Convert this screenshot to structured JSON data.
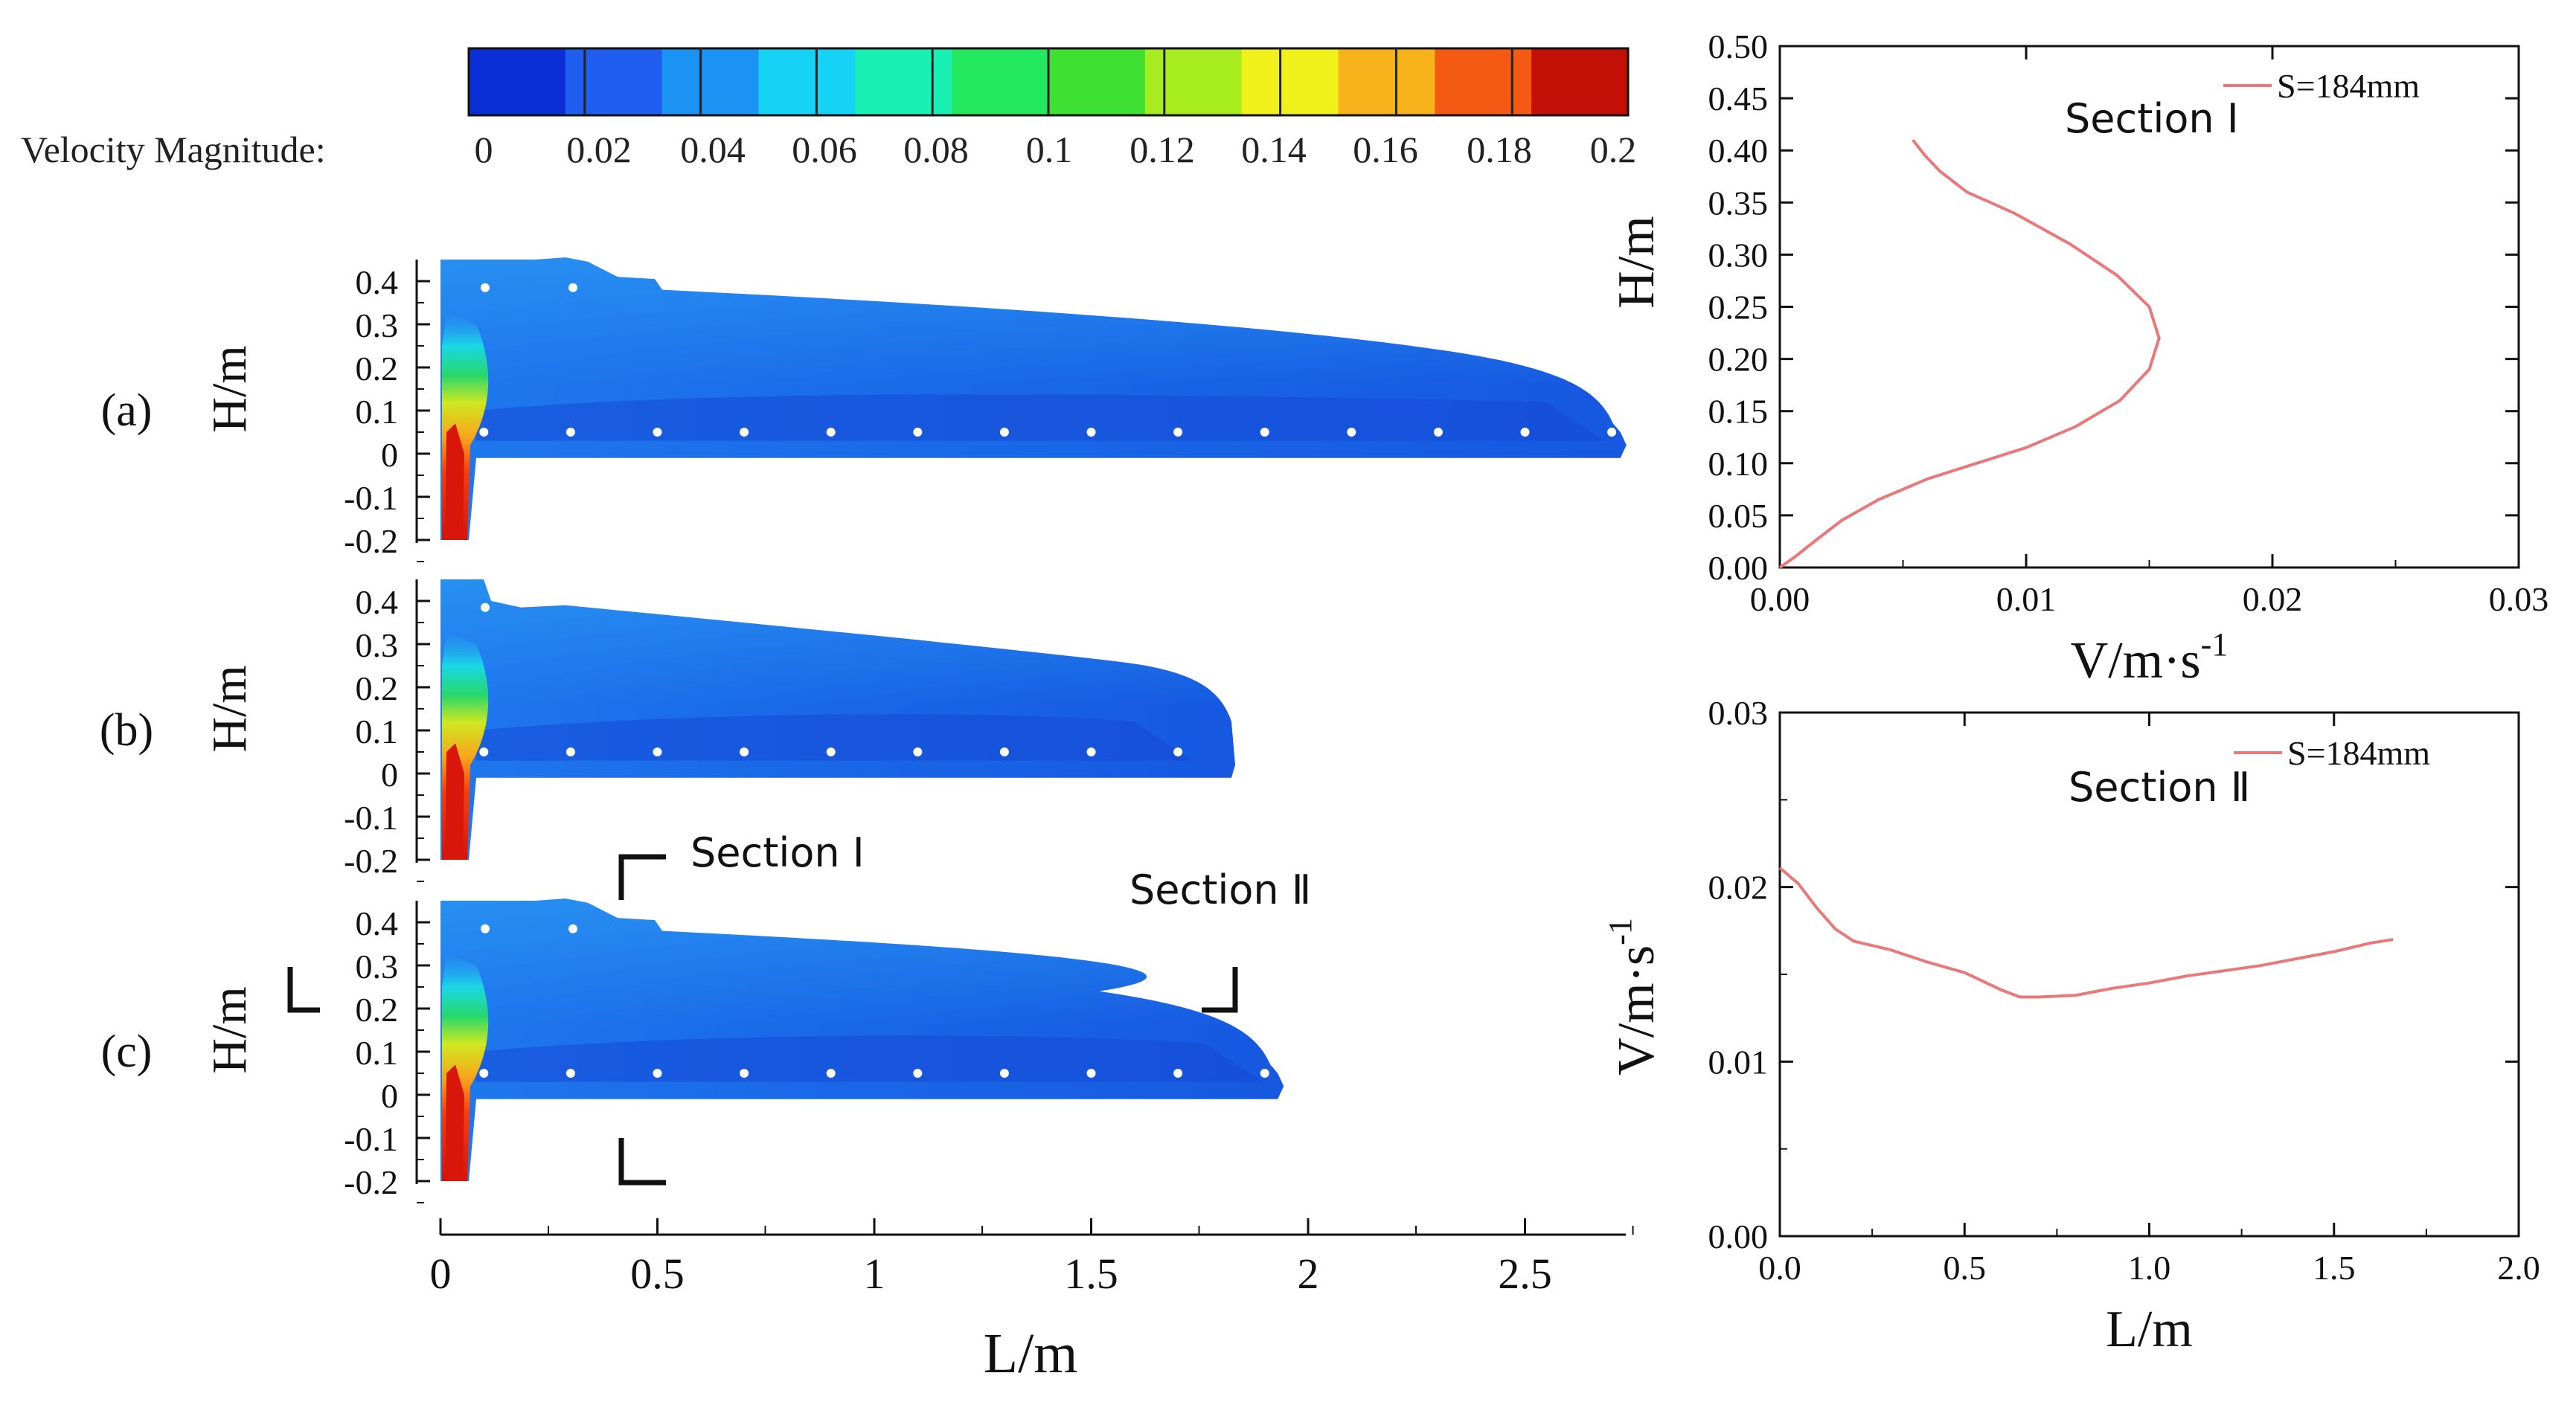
{
  "colorbar": {
    "label": "Velocity Magnitude:",
    "ticks": [
      "0",
      "0.02",
      "0.04",
      "0.06",
      "0.08",
      "0.1",
      "0.12",
      "0.14",
      "0.16",
      "0.18",
      "0.2"
    ],
    "colors": [
      "#0a2fd6",
      "#1f5ef0",
      "#1a93f5",
      "#16d3f5",
      "#19f0b4",
      "#22e860",
      "#3ee032",
      "#a6ec1f",
      "#f0f01a",
      "#f6b41a",
      "#f45a14",
      "#c21006"
    ],
    "range": [
      0,
      0.2
    ]
  },
  "contour_panels": {
    "ylabel": "H/m",
    "xlabel": "L/m",
    "y_ticks": [
      "0.4",
      "0.3",
      "0.2",
      "0.1",
      "0",
      "-0.1",
      "-0.2"
    ],
    "x_ticks": [
      "0",
      "0.5",
      "1",
      "1.5",
      "2",
      "2.5"
    ],
    "panels": [
      {
        "label": "(a)",
        "length_m": 2.72
      },
      {
        "label": "(b)",
        "length_m": 1.77
      },
      {
        "label": "(c)",
        "length_m": 1.93
      }
    ],
    "section1_label": "Section Ⅰ",
    "section2_label": "Section Ⅱ"
  },
  "chart_data": [
    {
      "type": "line",
      "title": "Section Ⅰ",
      "xlabel": "V/m·s",
      "xlabel_sup": "-1",
      "ylabel": "H/m",
      "xlim": [
        0,
        0.03
      ],
      "ylim": [
        0,
        0.5
      ],
      "x_ticks": [
        "0.00",
        "0.01",
        "0.02",
        "0.03"
      ],
      "y_ticks": [
        "0.00",
        "0.05",
        "0.10",
        "0.15",
        "0.20",
        "0.25",
        "0.30",
        "0.35",
        "0.40",
        "0.45",
        "0.50"
      ],
      "series": [
        {
          "name": "S=184mm",
          "color": "#e8787a",
          "points": [
            [
              0.0,
              0.0
            ],
            [
              0.0006,
              0.01
            ],
            [
              0.0014,
              0.025
            ],
            [
              0.0025,
              0.045
            ],
            [
              0.004,
              0.065
            ],
            [
              0.006,
              0.085
            ],
            [
              0.008,
              0.1
            ],
            [
              0.01,
              0.115
            ],
            [
              0.012,
              0.135
            ],
            [
              0.0138,
              0.16
            ],
            [
              0.015,
              0.19
            ],
            [
              0.0154,
              0.22
            ],
            [
              0.015,
              0.25
            ],
            [
              0.0137,
              0.28
            ],
            [
              0.0118,
              0.31
            ],
            [
              0.0095,
              0.34
            ],
            [
              0.0076,
              0.36
            ],
            [
              0.0065,
              0.38
            ],
            [
              0.0059,
              0.395
            ],
            [
              0.0054,
              0.41
            ]
          ]
        }
      ]
    },
    {
      "type": "line",
      "title": "Section Ⅱ",
      "xlabel": "L/m",
      "ylabel": "V/m·s",
      "ylabel_sup": "-1",
      "xlim": [
        0,
        2.0
      ],
      "ylim": [
        0,
        0.03
      ],
      "x_ticks": [
        "0.0",
        "0.5",
        "1.0",
        "1.5",
        "2.0"
      ],
      "y_ticks": [
        "0.00",
        "0.01",
        "0.02",
        "0.03"
      ],
      "series": [
        {
          "name": "S=184mm",
          "color": "#e8787a",
          "points": [
            [
              0.0,
              0.0211
            ],
            [
              0.05,
              0.0202
            ],
            [
              0.1,
              0.0188
            ],
            [
              0.15,
              0.0176
            ],
            [
              0.2,
              0.0169
            ],
            [
              0.3,
              0.0164
            ],
            [
              0.4,
              0.0157
            ],
            [
              0.5,
              0.0151
            ],
            [
              0.6,
              0.0141
            ],
            [
              0.65,
              0.0137
            ],
            [
              0.7,
              0.0137
            ],
            [
              0.8,
              0.0138
            ],
            [
              0.9,
              0.0142
            ],
            [
              1.0,
              0.0145
            ],
            [
              1.1,
              0.0149
            ],
            [
              1.2,
              0.0152
            ],
            [
              1.3,
              0.0155
            ],
            [
              1.4,
              0.0159
            ],
            [
              1.5,
              0.0163
            ],
            [
              1.6,
              0.0168
            ],
            [
              1.66,
              0.017
            ]
          ]
        }
      ]
    }
  ]
}
